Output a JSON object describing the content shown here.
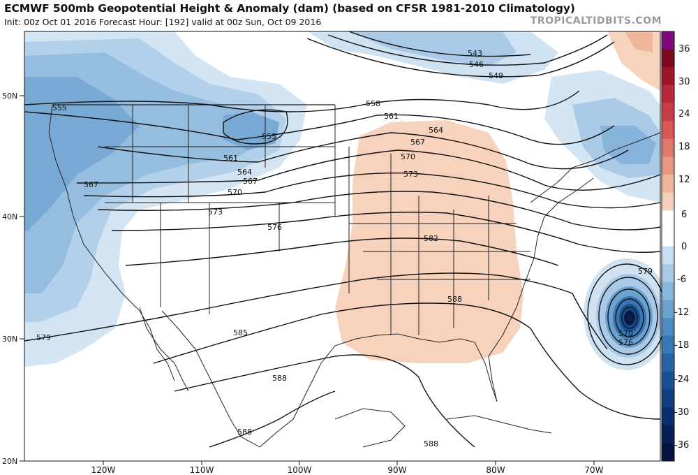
{
  "header": {
    "title": "ECMWF 500mb Geopotential Height & Anomaly (dam) (based on CFSR 1981-2010 Climatology)",
    "subtitle": "Init: 00z Oct 01 2016   Forecast Hour: [192]   valid at 00z Sun, Oct 09 2016",
    "brand": "TROPICALTIDBITS.COM"
  },
  "map": {
    "lat_labels": [
      "50N",
      "40N",
      "30N",
      "20N"
    ],
    "lon_labels": [
      "120W",
      "110W",
      "100W",
      "90W",
      "80W",
      "70W"
    ],
    "contour_labels": [
      "543",
      "546",
      "549",
      "555",
      "555",
      "558",
      "561",
      "561",
      "564",
      "564",
      "567",
      "567",
      "567",
      "570",
      "570",
      "570",
      "573",
      "573",
      "576",
      "576",
      "579",
      "579",
      "582",
      "585",
      "588",
      "588",
      "588",
      "588",
      "570"
    ]
  },
  "colorbar": {
    "labels": [
      "36",
      "30",
      "24",
      "18",
      "12",
      "6",
      "0",
      "-6",
      "-12",
      "-18",
      "-24",
      "-30",
      "-36"
    ],
    "colors": [
      "#7d0a7d",
      "#7a0a1e",
      "#9e1428",
      "#b8283a",
      "#c93d48",
      "#d8585a",
      "#e07a6c",
      "#e89880",
      "#efb69c",
      "#f5d0bb",
      "#ffffff",
      "#ffffff",
      "#c9def0",
      "#a9c9e5",
      "#8ab7dc",
      "#6aa2d0",
      "#4f8cc2",
      "#3877b4",
      "#2563a4",
      "#184f92",
      "#103f80",
      "#0b2f6c",
      "#081f55",
      "#06123f"
    ]
  }
}
